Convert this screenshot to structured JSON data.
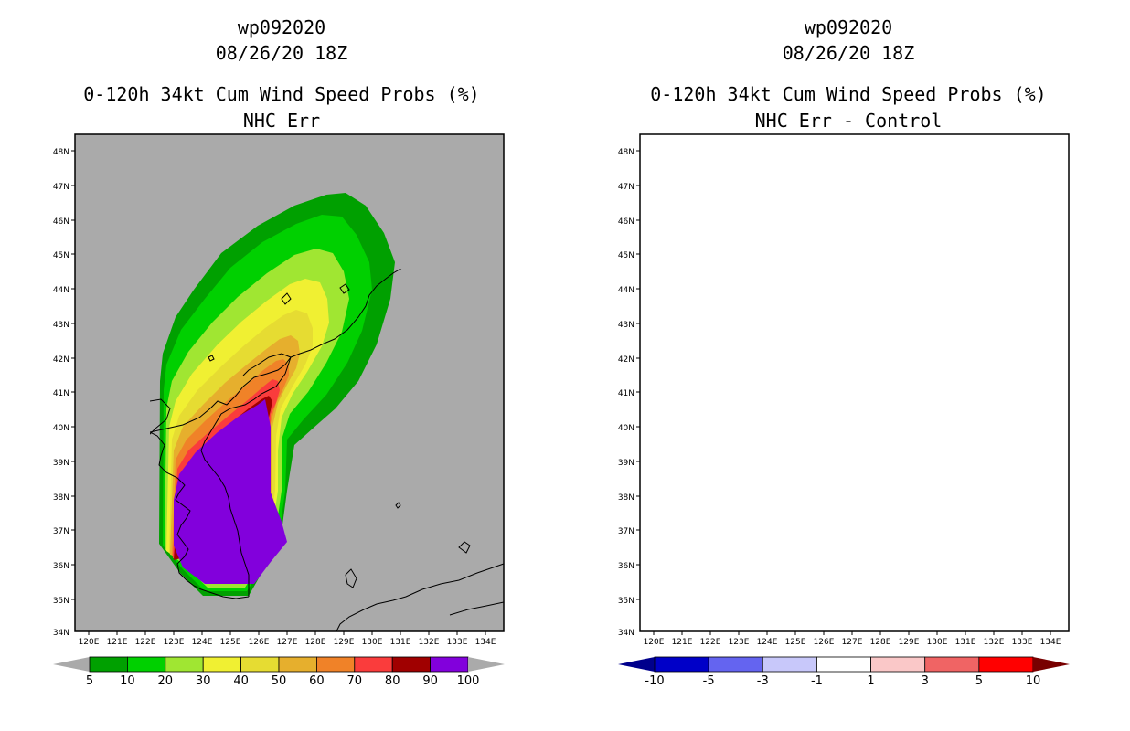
{
  "left_panel": {
    "title_lines": [
      "wp092020",
      "08/26/20 18Z",
      "0-120h 34kt Cum Wind Speed Probs (%)",
      "NHC Err"
    ],
    "lon_labels": [
      "120E",
      "121E",
      "122E",
      "123E",
      "124E",
      "125E",
      "126E",
      "127E",
      "128E",
      "129E",
      "130E",
      "131E",
      "132E",
      "133E",
      "134E"
    ],
    "lat_labels": [
      "48N",
      "47N",
      "46N",
      "45N",
      "44N",
      "43N",
      "42N",
      "41N",
      "40N",
      "39N",
      "38N",
      "37N",
      "36N",
      "35N",
      "34N"
    ],
    "colorbar": {
      "colors": [
        "#00a000",
        "#00d000",
        "#a0e632",
        "#f0f032",
        "#e6dc32",
        "#e6af2d",
        "#f08228",
        "#fa3c3c",
        "#a00000",
        "#8200dc"
      ],
      "labels": [
        "5",
        "10",
        "20",
        "30",
        "40",
        "50",
        "60",
        "70",
        "80",
        "90",
        "100"
      ],
      "under_color": "#aaaaaa",
      "over_color": "#aaaaaa"
    },
    "background_color": "#aaaaaa"
  },
  "right_panel": {
    "title_lines": [
      "wp092020",
      "08/26/20 18Z",
      "0-120h 34kt Cum Wind Speed Probs (%)",
      "NHC Err - Control"
    ],
    "lon_labels": [
      "120E",
      "121E",
      "122E",
      "123E",
      "124E",
      "125E",
      "126E",
      "127E",
      "128E",
      "129E",
      "130E",
      "131E",
      "132E",
      "133E",
      "134E"
    ],
    "lat_labels": [
      "48N",
      "47N",
      "46N",
      "45N",
      "44N",
      "43N",
      "42N",
      "41N",
      "40N",
      "39N",
      "38N",
      "37N",
      "36N",
      "35N",
      "34N"
    ],
    "colorbar": {
      "colors": [
        "#0000c8",
        "#6464f0",
        "#c8c8fa",
        "#ffffff",
        "#fac8c8",
        "#f06464",
        "#ff0000"
      ],
      "labels": [
        "-10",
        "-5",
        "-3",
        "-1",
        "1",
        "3",
        "5",
        "10"
      ],
      "under_color": "#00008c",
      "over_color": "#780000"
    },
    "background_color": "#ffffff"
  }
}
